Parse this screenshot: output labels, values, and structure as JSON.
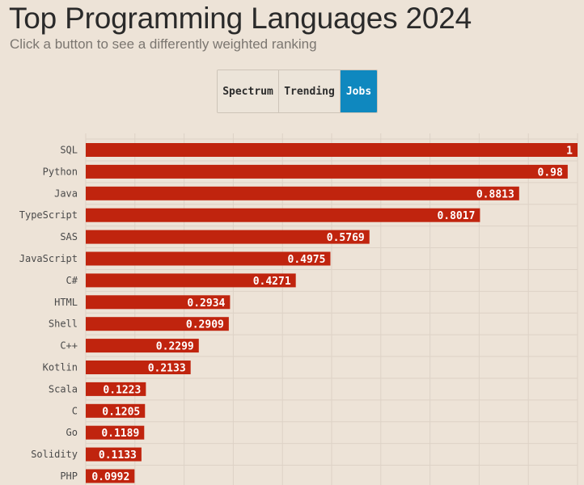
{
  "header": {
    "title": "Top Programming Languages 2024",
    "subtitle": "Click a button to see a differently weighted ranking"
  },
  "toggle": {
    "buttons": [
      {
        "label": "Spectrum",
        "active": false
      },
      {
        "label": "Trending",
        "active": false
      },
      {
        "label": "Jobs",
        "active": true
      }
    ],
    "active_color": "#0f88bf"
  },
  "chart_data": {
    "type": "bar",
    "orientation": "horizontal",
    "categories": [
      "SQL",
      "Python",
      "Java",
      "TypeScript",
      "SAS",
      "JavaScript",
      "C#",
      "HTML",
      "Shell",
      "C++",
      "Kotlin",
      "Scala",
      "C",
      "Go",
      "Solidity",
      "PHP"
    ],
    "values": [
      1,
      0.98,
      0.8813,
      0.8017,
      0.5769,
      0.4975,
      0.4271,
      0.2934,
      0.2909,
      0.2299,
      0.2133,
      0.1223,
      0.1205,
      0.1189,
      0.1133,
      0.0992
    ],
    "value_labels": [
      "1",
      "0.98",
      "0.8813",
      "0.8017",
      "0.5769",
      "0.4975",
      "0.4271",
      "0.2934",
      "0.2909",
      "0.2299",
      "0.2133",
      "0.1223",
      "0.1205",
      "0.1189",
      "0.1133",
      "0.0992"
    ],
    "xlim": [
      0,
      1
    ],
    "grid": true,
    "bar_color": "#c0240e",
    "grid_color": "#ddd2c6"
  }
}
